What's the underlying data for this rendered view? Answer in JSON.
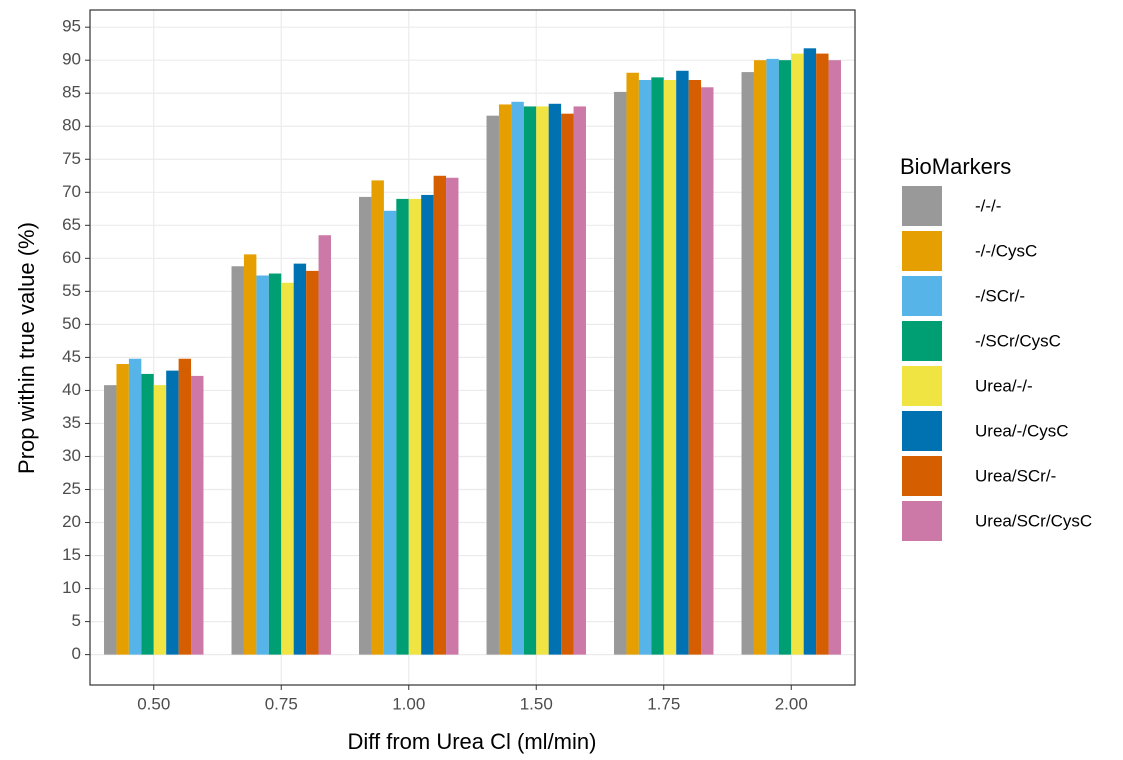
{
  "chart_data": {
    "type": "bar",
    "x_label": "Diff from Urea Cl (ml/min)",
    "y_label": "Prop within true value (%)",
    "legend_title": "BioMarkers",
    "legend_position": "right",
    "grid": true,
    "categories": [
      "0.50",
      "0.75",
      "1.00",
      "1.50",
      "1.75",
      "2.00"
    ],
    "ylim": [
      -4.6,
      97.6
    ],
    "yticks": [
      0,
      5,
      10,
      15,
      20,
      25,
      30,
      35,
      40,
      45,
      50,
      55,
      60,
      65,
      70,
      75,
      80,
      85,
      90,
      95
    ],
    "series": [
      {
        "name": "-/-/-",
        "color": "#999999",
        "values": [
          40.8,
          58.8,
          69.3,
          81.6,
          85.2,
          88.2
        ]
      },
      {
        "name": "-/-/CysC",
        "color": "#E69F00",
        "values": [
          44.0,
          60.6,
          71.8,
          83.3,
          88.1,
          90.0
        ]
      },
      {
        "name": "-/SCr/-",
        "color": "#56B4E9",
        "values": [
          44.8,
          57.4,
          67.2,
          83.7,
          87.0,
          90.2
        ]
      },
      {
        "name": "-/SCr/CysC",
        "color": "#009E73",
        "values": [
          42.5,
          57.7,
          69.0,
          83.0,
          87.4,
          90.0
        ]
      },
      {
        "name": "Urea/-/-",
        "color": "#F0E442",
        "values": [
          40.8,
          56.3,
          69.0,
          83.0,
          87.0,
          91.0
        ]
      },
      {
        "name": "Urea/-/CysC",
        "color": "#0072B2",
        "values": [
          43.0,
          59.2,
          69.6,
          83.4,
          88.4,
          91.8
        ]
      },
      {
        "name": "Urea/SCr/-",
        "color": "#D55E00",
        "values": [
          44.8,
          58.1,
          72.5,
          81.9,
          87.0,
          91.0
        ]
      },
      {
        "name": "Urea/SCr/CysC",
        "color": "#CC79A7",
        "values": [
          42.2,
          63.5,
          72.2,
          83.0,
          85.9,
          90.0
        ]
      }
    ]
  }
}
